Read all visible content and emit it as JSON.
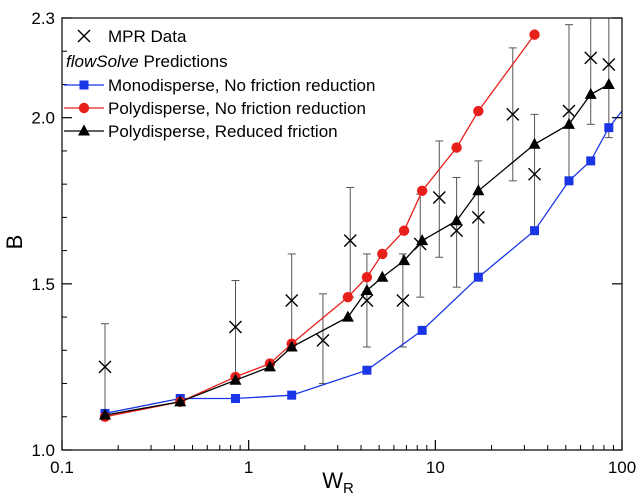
{
  "chart_data": {
    "type": "scatter",
    "xlabel": "W",
    "xlabel_sub": "R",
    "ylabel": "B",
    "xscale": "log",
    "xlim": [
      0.1,
      100
    ],
    "ylim": [
      1.0,
      2.3
    ],
    "grid": false,
    "legend_position": "top-left",
    "x_ticks": [
      {
        "value": 0.1,
        "label": "0.1"
      },
      {
        "value": 1,
        "label": "1"
      },
      {
        "value": 10,
        "label": "10"
      },
      {
        "value": 100,
        "label": "100"
      }
    ],
    "y_ticks": [
      {
        "value": 1.0,
        "label": "1.0"
      },
      {
        "value": 1.5,
        "label": "1.5"
      },
      {
        "value": 2.0,
        "label": "2.0"
      },
      {
        "value": 2.3,
        "label": "2.3"
      }
    ],
    "legend": {
      "subheading_italic": "flowSolve",
      "subheading_rest": " Predictions"
    },
    "mpr_data": {
      "name": "MPR Data",
      "marker": "x",
      "color": "#000000",
      "points": [
        {
          "x": 0.17,
          "y": 1.25,
          "lo": 1.11,
          "hi": 1.38
        },
        {
          "x": 0.85,
          "y": 1.37,
          "lo": 1.22,
          "hi": 1.51
        },
        {
          "x": 1.7,
          "y": 1.45,
          "lo": 1.31,
          "hi": 1.59
        },
        {
          "x": 2.5,
          "y": 1.33,
          "lo": 1.2,
          "hi": 1.47
        },
        {
          "x": 3.5,
          "y": 1.63,
          "lo": 1.46,
          "hi": 1.79
        },
        {
          "x": 4.3,
          "y": 1.45,
          "lo": 1.31,
          "hi": 1.59
        },
        {
          "x": 6.7,
          "y": 1.45,
          "lo": 1.31,
          "hi": 1.59
        },
        {
          "x": 8.3,
          "y": 1.62,
          "lo": 1.46,
          "hi": 1.77
        },
        {
          "x": 10.5,
          "y": 1.76,
          "lo": 1.58,
          "hi": 1.93
        },
        {
          "x": 13,
          "y": 1.66,
          "lo": 1.49,
          "hi": 1.82
        },
        {
          "x": 17,
          "y": 1.7,
          "lo": 1.53,
          "hi": 1.87
        },
        {
          "x": 26,
          "y": 2.01,
          "lo": 1.81,
          "hi": 2.21
        },
        {
          "x": 34,
          "y": 1.83,
          "lo": 1.65,
          "hi": 2.01
        },
        {
          "x": 52,
          "y": 2.02,
          "lo": 1.82,
          "hi": 2.28
        },
        {
          "x": 68,
          "y": 2.18,
          "lo": 1.98,
          "hi": 2.3
        },
        {
          "x": 85,
          "y": 2.16,
          "lo": 1.94,
          "hi": 2.3
        }
      ]
    },
    "series": [
      {
        "name": "Monodisperse, No friction reduction",
        "color": "#1a35e6",
        "marker": "square",
        "x": [
          0.17,
          0.43,
          0.85,
          1.7,
          4.3,
          8.5,
          17,
          34,
          52,
          68,
          85,
          100
        ],
        "y": [
          1.11,
          1.155,
          1.155,
          1.165,
          1.24,
          1.36,
          1.52,
          1.66,
          1.81,
          1.87,
          1.97,
          2.02
        ],
        "marker_count": 11
      },
      {
        "name": "Polydisperse, No friction reduction",
        "color": "#e8201c",
        "marker": "circle",
        "x": [
          0.17,
          0.43,
          0.85,
          1.3,
          1.7,
          3.4,
          4.3,
          5.2,
          6.8,
          8.5,
          13,
          17,
          34
        ],
        "y": [
          1.1,
          1.145,
          1.22,
          1.26,
          1.32,
          1.46,
          1.52,
          1.59,
          1.66,
          1.78,
          1.91,
          2.02,
          2.25
        ]
      },
      {
        "name": "Polydisperse, Reduced friction",
        "color": "#000000",
        "marker": "triangle",
        "x": [
          0.17,
          0.43,
          0.85,
          1.3,
          1.7,
          3.4,
          4.3,
          5.2,
          6.8,
          8.5,
          13,
          17,
          34,
          52,
          68,
          85
        ],
        "y": [
          1.105,
          1.145,
          1.21,
          1.25,
          1.31,
          1.4,
          1.48,
          1.52,
          1.57,
          1.63,
          1.69,
          1.78,
          1.92,
          1.98,
          2.07,
          2.1
        ]
      }
    ]
  }
}
